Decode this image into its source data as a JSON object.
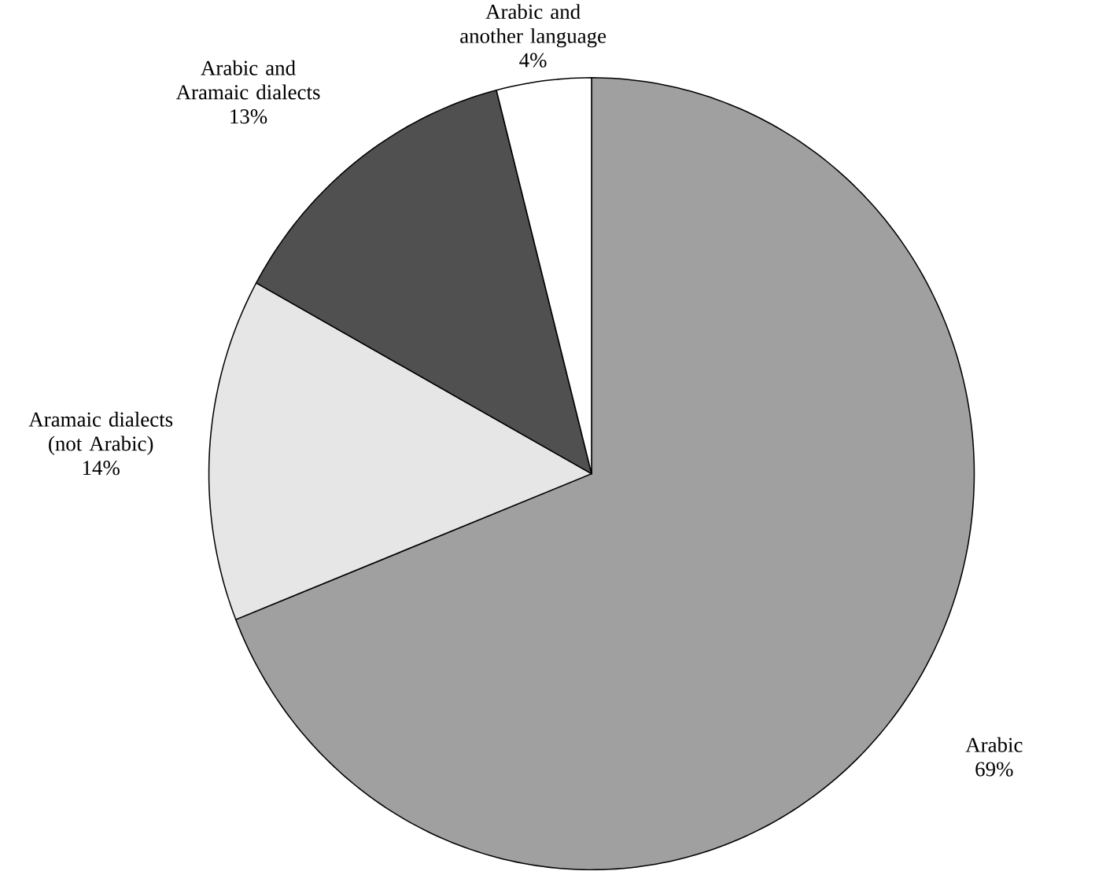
{
  "chart_data": {
    "type": "pie",
    "categories": [
      "Arabic",
      "Aramaic dialects (not Arabic)",
      "Arabic and Aramaic dialects",
      "Arabic and another language"
    ],
    "values": [
      69,
      14,
      13,
      4
    ],
    "value_labels": [
      "69%",
      "14%",
      "13%",
      "4%"
    ],
    "colors": [
      "#a0a0a0",
      "#e6e6e6",
      "#505050",
      "#ffffff"
    ]
  }
}
